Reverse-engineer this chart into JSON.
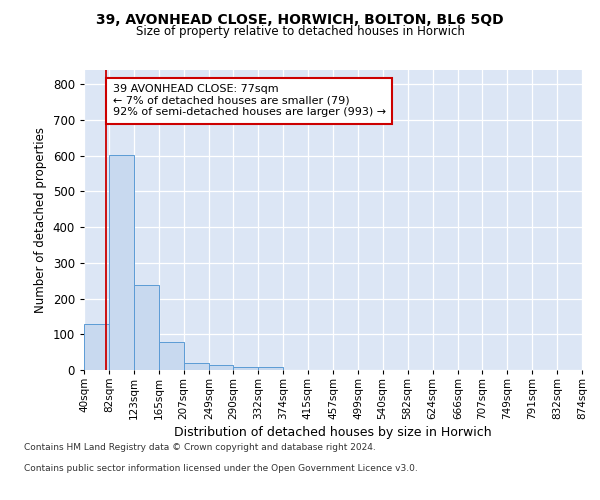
{
  "title1": "39, AVONHEAD CLOSE, HORWICH, BOLTON, BL6 5QD",
  "title2": "Size of property relative to detached houses in Horwich",
  "xlabel": "Distribution of detached houses by size in Horwich",
  "ylabel": "Number of detached properties",
  "bin_labels": [
    "40sqm",
    "82sqm",
    "123sqm",
    "165sqm",
    "207sqm",
    "249sqm",
    "290sqm",
    "332sqm",
    "374sqm",
    "415sqm",
    "457sqm",
    "499sqm",
    "540sqm",
    "582sqm",
    "624sqm",
    "666sqm",
    "707sqm",
    "749sqm",
    "791sqm",
    "832sqm",
    "874sqm"
  ],
  "bar_values": [
    128,
    601,
    237,
    79,
    21,
    13,
    9,
    9,
    0,
    0,
    0,
    0,
    0,
    0,
    0,
    0,
    0,
    0,
    0,
    0
  ],
  "bar_color": "#c8d9ef",
  "bar_edge_color": "#5b9bd5",
  "plot_bg_color": "#dce6f5",
  "grid_color": "#ffffff",
  "annotation_line1": "39 AVONHEAD CLOSE: 77sqm",
  "annotation_line2": "← 7% of detached houses are smaller (79)",
  "annotation_line3": "92% of semi-detached houses are larger (993) →",
  "annotation_box_facecolor": "#ffffff",
  "annotation_box_edgecolor": "#cc0000",
  "property_line_x": 77,
  "ylim": [
    0,
    840
  ],
  "yticks": [
    0,
    100,
    200,
    300,
    400,
    500,
    600,
    700,
    800
  ],
  "bin_edges": [
    40,
    82,
    123,
    165,
    207,
    249,
    290,
    332,
    374,
    415,
    457,
    499,
    540,
    582,
    624,
    666,
    707,
    749,
    791,
    832,
    874
  ],
  "footer1": "Contains HM Land Registry data © Crown copyright and database right 2024.",
  "footer2": "Contains public sector information licensed under the Open Government Licence v3.0."
}
